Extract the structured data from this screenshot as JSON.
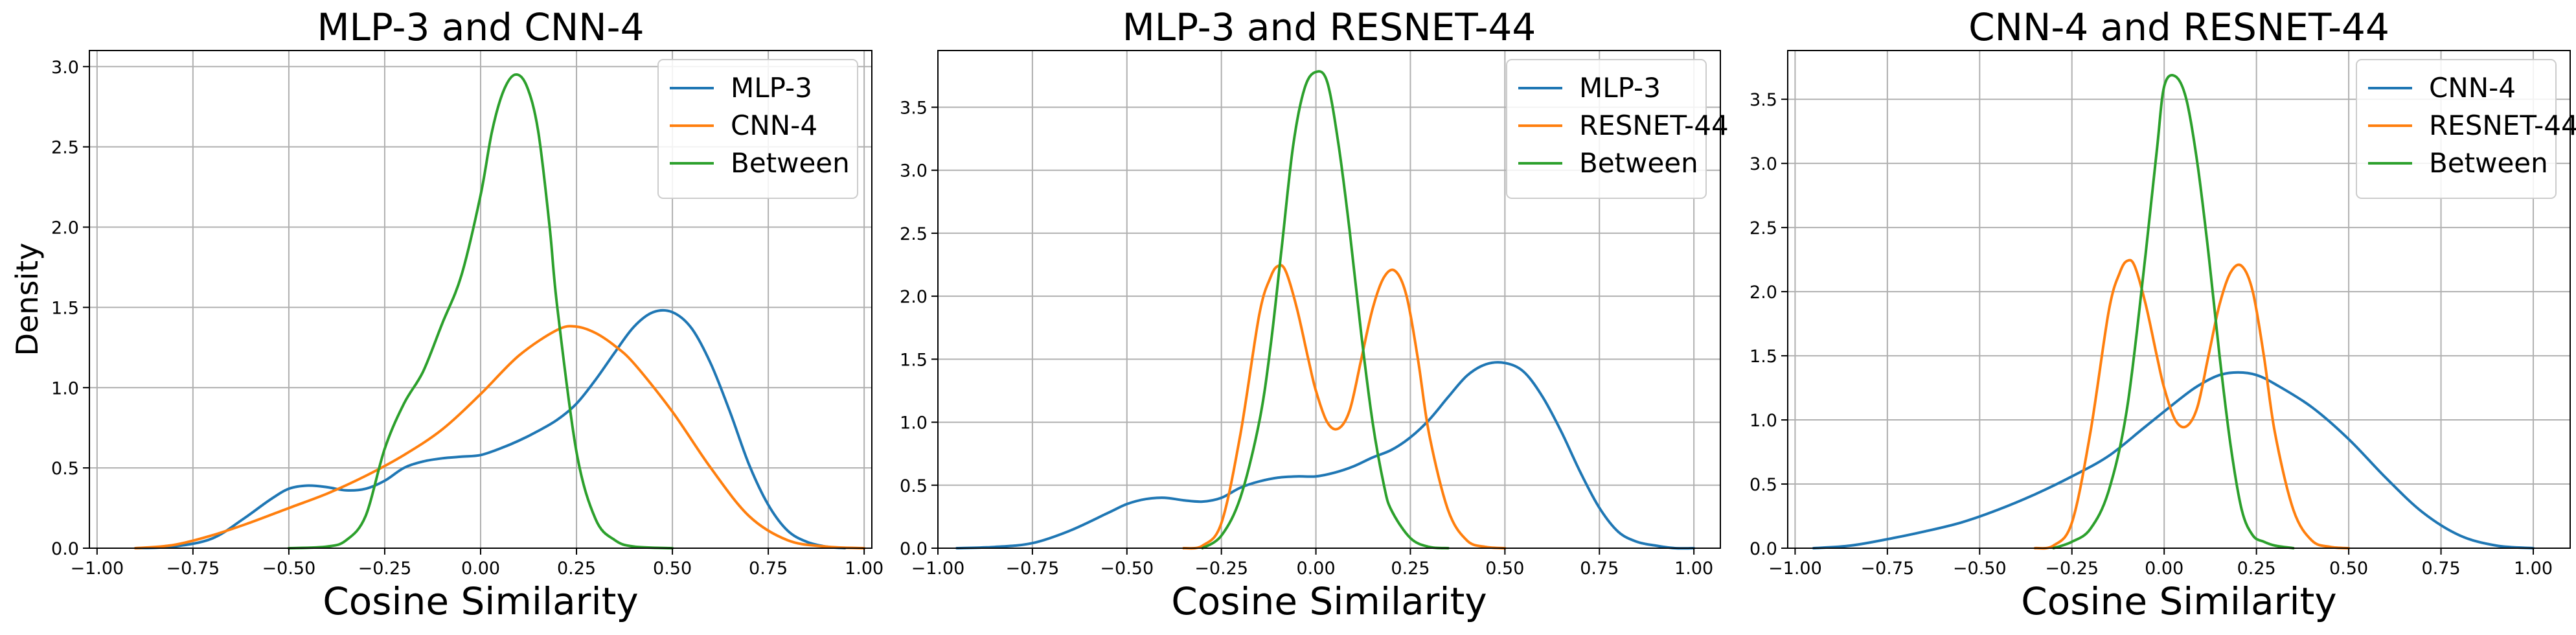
{
  "chart_data": [
    {
      "type": "line",
      "title": "MLP-3 and CNN-4",
      "xlabel": "Cosine Similarity",
      "ylabel": "Density",
      "xlim": [
        -1.02,
        1.02
      ],
      "ylim": [
        0,
        3.1
      ],
      "xticks": [
        -1.0,
        -0.75,
        -0.5,
        -0.25,
        0.0,
        0.25,
        0.5,
        0.75,
        1.0
      ],
      "xtick_labels": [
        "−1.00",
        "−0.75",
        "−0.50",
        "−0.25",
        "0.00",
        "0.25",
        "0.50",
        "0.75",
        "1.00"
      ],
      "yticks": [
        0.0,
        0.5,
        1.0,
        1.5,
        2.0,
        2.5,
        3.0
      ],
      "ytick_labels": [
        "0.0",
        "0.5",
        "1.0",
        "1.5",
        "2.0",
        "2.5",
        "3.0"
      ],
      "grid": true,
      "legend_position": "top-right",
      "series": [
        {
          "name": "MLP-3",
          "color": "#1f77b4",
          "x": [
            -0.9,
            -0.8,
            -0.7,
            -0.62,
            -0.55,
            -0.5,
            -0.45,
            -0.4,
            -0.35,
            -0.3,
            -0.25,
            -0.2,
            -0.15,
            -0.1,
            -0.05,
            0.0,
            0.05,
            0.1,
            0.15,
            0.2,
            0.25,
            0.3,
            0.35,
            0.4,
            0.45,
            0.5,
            0.55,
            0.6,
            0.65,
            0.7,
            0.75,
            0.8,
            0.85,
            0.9,
            0.95
          ],
          "y": [
            0.0,
            0.01,
            0.06,
            0.18,
            0.3,
            0.37,
            0.39,
            0.38,
            0.36,
            0.37,
            0.42,
            0.5,
            0.54,
            0.56,
            0.57,
            0.58,
            0.62,
            0.67,
            0.73,
            0.8,
            0.9,
            1.05,
            1.22,
            1.38,
            1.47,
            1.47,
            1.37,
            1.15,
            0.85,
            0.52,
            0.27,
            0.11,
            0.04,
            0.01,
            0.0
          ]
        },
        {
          "name": "CNN-4",
          "color": "#ff7f0e",
          "x": [
            -0.9,
            -0.8,
            -0.7,
            -0.6,
            -0.5,
            -0.4,
            -0.3,
            -0.2,
            -0.1,
            0.0,
            0.1,
            0.2,
            0.25,
            0.3,
            0.35,
            0.4,
            0.5,
            0.6,
            0.7,
            0.8,
            0.9,
            1.0
          ],
          "y": [
            0.0,
            0.02,
            0.08,
            0.16,
            0.25,
            0.34,
            0.45,
            0.58,
            0.74,
            0.96,
            1.2,
            1.36,
            1.38,
            1.34,
            1.26,
            1.15,
            0.85,
            0.5,
            0.2,
            0.05,
            0.01,
            0.0
          ]
        },
        {
          "name": "Between",
          "color": "#2ca02c",
          "x": [
            -0.5,
            -0.4,
            -0.35,
            -0.3,
            -0.25,
            -0.2,
            -0.15,
            -0.1,
            -0.05,
            0.0,
            0.03,
            0.06,
            0.09,
            0.12,
            0.15,
            0.18,
            0.2,
            0.25,
            0.3,
            0.35,
            0.4,
            0.5
          ],
          "y": [
            0.0,
            0.01,
            0.05,
            0.2,
            0.62,
            0.9,
            1.1,
            1.4,
            1.7,
            2.2,
            2.6,
            2.85,
            2.95,
            2.88,
            2.6,
            2.0,
            1.5,
            0.6,
            0.18,
            0.05,
            0.01,
            0.0
          ]
        }
      ]
    },
    {
      "type": "line",
      "title": "MLP-3 and RESNET-44",
      "xlabel": "Cosine Similarity",
      "ylabel": "",
      "xlim": [
        -1.0,
        1.07
      ],
      "ylim": [
        0,
        3.95
      ],
      "xticks": [
        -1.0,
        -0.75,
        -0.5,
        -0.25,
        0.0,
        0.25,
        0.5,
        0.75,
        1.0
      ],
      "xtick_labels": [
        "−1.00",
        "−0.75",
        "−0.50",
        "−0.25",
        "0.00",
        "0.25",
        "0.50",
        "0.75",
        "1.00"
      ],
      "yticks": [
        0.0,
        0.5,
        1.0,
        1.5,
        2.0,
        2.5,
        3.0,
        3.5
      ],
      "ytick_labels": [
        "0.0",
        "0.5",
        "1.0",
        "1.5",
        "2.0",
        "2.5",
        "3.0",
        "3.5"
      ],
      "grid": true,
      "legend_position": "top-right",
      "series": [
        {
          "name": "MLP-3",
          "color": "#1f77b4",
          "x": [
            -0.95,
            -0.85,
            -0.75,
            -0.65,
            -0.55,
            -0.5,
            -0.45,
            -0.4,
            -0.35,
            -0.3,
            -0.25,
            -0.2,
            -0.15,
            -0.1,
            -0.05,
            0.0,
            0.05,
            0.1,
            0.15,
            0.2,
            0.25,
            0.3,
            0.35,
            0.4,
            0.45,
            0.5,
            0.55,
            0.6,
            0.65,
            0.7,
            0.75,
            0.8,
            0.85,
            0.9,
            0.95,
            1.0
          ],
          "y": [
            0.0,
            0.01,
            0.04,
            0.14,
            0.28,
            0.35,
            0.39,
            0.4,
            0.38,
            0.37,
            0.4,
            0.48,
            0.53,
            0.56,
            0.57,
            0.57,
            0.6,
            0.65,
            0.72,
            0.78,
            0.88,
            1.02,
            1.2,
            1.37,
            1.46,
            1.47,
            1.4,
            1.2,
            0.92,
            0.6,
            0.32,
            0.13,
            0.05,
            0.02,
            0.0,
            0.0
          ]
        },
        {
          "name": "RESNET-44",
          "color": "#ff7f0e",
          "x": [
            -0.35,
            -0.3,
            -0.25,
            -0.2,
            -0.15,
            -0.12,
            -0.1,
            -0.08,
            -0.05,
            -0.02,
            0.0,
            0.03,
            0.06,
            0.09,
            0.12,
            0.15,
            0.18,
            0.21,
            0.24,
            0.27,
            0.3,
            0.35,
            0.4,
            0.45,
            0.5
          ],
          "y": [
            0.0,
            0.02,
            0.2,
            0.9,
            1.85,
            2.15,
            2.24,
            2.2,
            1.9,
            1.5,
            1.25,
            1.0,
            0.95,
            1.1,
            1.5,
            1.9,
            2.15,
            2.2,
            2.0,
            1.5,
            0.9,
            0.3,
            0.06,
            0.01,
            0.0
          ]
        },
        {
          "name": "Between",
          "color": "#2ca02c",
          "x": [
            -0.3,
            -0.25,
            -0.2,
            -0.15,
            -0.12,
            -0.09,
            -0.06,
            -0.03,
            0.0,
            0.03,
            0.06,
            0.09,
            0.12,
            0.15,
            0.18,
            0.2,
            0.25,
            0.3,
            0.35
          ],
          "y": [
            0.0,
            0.1,
            0.4,
            1.0,
            1.6,
            2.4,
            3.2,
            3.65,
            3.78,
            3.7,
            3.2,
            2.5,
            1.7,
            1.0,
            0.5,
            0.3,
            0.08,
            0.01,
            0.0
          ]
        }
      ]
    },
    {
      "type": "line",
      "title": "CNN-4 and RESNET-44",
      "xlabel": "Cosine Similarity",
      "ylabel": "",
      "xlim": [
        -1.02,
        1.1
      ],
      "ylim": [
        0,
        3.88
      ],
      "xticks": [
        -1.0,
        -0.75,
        -0.5,
        -0.25,
        0.0,
        0.25,
        0.5,
        0.75,
        1.0
      ],
      "xtick_labels": [
        "−1.00",
        "−0.75",
        "−0.50",
        "−0.25",
        "0.00",
        "0.25",
        "0.50",
        "0.75",
        "1.00"
      ],
      "yticks": [
        0.0,
        0.5,
        1.0,
        1.5,
        2.0,
        2.5,
        3.0,
        3.5
      ],
      "ytick_labels": [
        "0.0",
        "0.5",
        "1.0",
        "1.5",
        "2.0",
        "2.5",
        "3.0",
        "3.5"
      ],
      "grid": true,
      "legend_position": "top-right",
      "series": [
        {
          "name": "CNN-4",
          "color": "#1f77b4",
          "x": [
            -0.95,
            -0.85,
            -0.75,
            -0.65,
            -0.55,
            -0.45,
            -0.35,
            -0.25,
            -0.15,
            -0.05,
            0.05,
            0.1,
            0.15,
            0.2,
            0.25,
            0.3,
            0.4,
            0.5,
            0.6,
            0.7,
            0.8,
            0.9,
            1.0
          ],
          "y": [
            0.0,
            0.02,
            0.07,
            0.13,
            0.2,
            0.3,
            0.42,
            0.56,
            0.72,
            0.95,
            1.18,
            1.28,
            1.35,
            1.37,
            1.35,
            1.28,
            1.1,
            0.85,
            0.55,
            0.28,
            0.1,
            0.02,
            0.0
          ]
        },
        {
          "name": "RESNET-44",
          "color": "#ff7f0e",
          "x": [
            -0.35,
            -0.3,
            -0.25,
            -0.2,
            -0.15,
            -0.12,
            -0.1,
            -0.08,
            -0.05,
            -0.02,
            0.0,
            0.03,
            0.06,
            0.09,
            0.12,
            0.15,
            0.18,
            0.21,
            0.24,
            0.27,
            0.3,
            0.35,
            0.4,
            0.45,
            0.5
          ],
          "y": [
            0.0,
            0.02,
            0.2,
            0.9,
            1.85,
            2.15,
            2.24,
            2.2,
            1.9,
            1.5,
            1.25,
            1.0,
            0.95,
            1.1,
            1.5,
            1.9,
            2.15,
            2.2,
            2.0,
            1.5,
            0.9,
            0.3,
            0.06,
            0.01,
            0.0
          ]
        },
        {
          "name": "Between",
          "color": "#2ca02c",
          "x": [
            -0.3,
            -0.25,
            -0.2,
            -0.15,
            -0.1,
            -0.05,
            -0.02,
            0.0,
            0.03,
            0.06,
            0.09,
            0.12,
            0.15,
            0.18,
            0.21,
            0.24,
            0.27,
            0.3,
            0.35
          ],
          "y": [
            0.0,
            0.05,
            0.15,
            0.45,
            1.1,
            2.3,
            3.1,
            3.6,
            3.68,
            3.5,
            3.0,
            2.3,
            1.5,
            0.8,
            0.3,
            0.1,
            0.05,
            0.02,
            0.0
          ]
        }
      ]
    }
  ]
}
